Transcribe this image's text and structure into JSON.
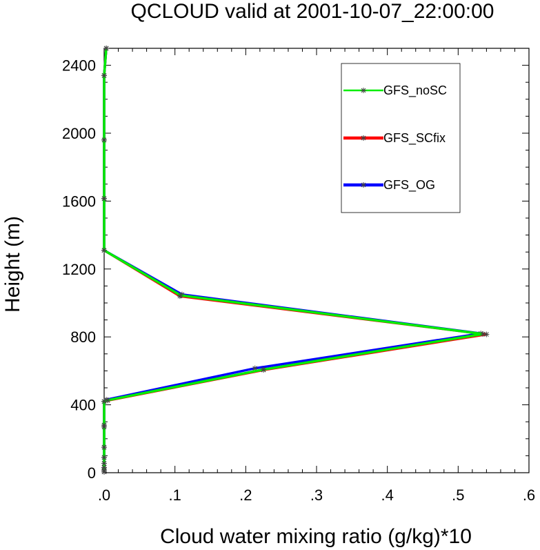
{
  "chart_data": {
    "type": "line",
    "title": "QCLOUD valid at 2001-10-07_22:00:00",
    "xlabel": "Cloud water mixing ratio (g/kg)*10",
    "ylabel": "Height (m)",
    "xlim": [
      0,
      0.6
    ],
    "ylim": [
      0,
      2500
    ],
    "xticks": [
      0,
      0.1,
      0.2,
      0.3,
      0.4,
      0.5,
      0.6
    ],
    "xtick_labels": [
      ".0",
      ".1",
      ".2",
      ".3",
      ".4",
      ".5",
      ".6"
    ],
    "yticks": [
      0,
      400,
      800,
      1200,
      1600,
      2000,
      2400
    ],
    "ytick_labels": [
      "0",
      "400",
      "800",
      "1200",
      "1600",
      "2000",
      "2400"
    ],
    "legend_position": "top-right",
    "grid": false,
    "series": [
      {
        "name": "GFS_SCfix",
        "color": "#ff0000",
        "marker": "asterisk",
        "x": [
          0.0,
          0.0,
          0.0,
          0.0,
          0.0,
          0.0,
          0.0,
          0.0,
          0.0,
          0.005,
          0.225,
          0.54,
          0.107,
          0.0,
          0.0,
          0.0,
          0.0,
          0.003
        ],
        "y": [
          5,
          15,
          30,
          55,
          90,
          150,
          270,
          280,
          420,
          425,
          605,
          815,
          1040,
          1310,
          1615,
          1960,
          2340,
          2500
        ]
      },
      {
        "name": "GFS_OG",
        "color": "#0000ff",
        "marker": "asterisk",
        "x": [
          0.0,
          0.0,
          0.0,
          0.0,
          0.0,
          0.0,
          0.0,
          0.0,
          0.0,
          0.003,
          0.213,
          0.532,
          0.11,
          0.0,
          0.0,
          0.0,
          0.0,
          0.003
        ],
        "y": [
          5,
          15,
          30,
          55,
          90,
          150,
          270,
          280,
          420,
          430,
          615,
          820,
          1050,
          1310,
          1615,
          1960,
          2340,
          2500
        ]
      },
      {
        "name": "GFS_noSC",
        "color": "#00ee00",
        "marker": "asterisk",
        "x": [
          0.0,
          0.0,
          0.0,
          0.0,
          0.0,
          0.0,
          0.0,
          0.0,
          0.0,
          0.005,
          0.225,
          0.535,
          0.108,
          0.0,
          0.0,
          0.0,
          0.0,
          0.003
        ],
        "y": [
          5,
          15,
          30,
          55,
          90,
          150,
          270,
          280,
          420,
          427,
          608,
          817,
          1045,
          1310,
          1615,
          1960,
          2340,
          2500
        ]
      }
    ],
    "legend_order": [
      "GFS_noSC",
      "GFS_SCfix",
      "GFS_OG"
    ]
  }
}
